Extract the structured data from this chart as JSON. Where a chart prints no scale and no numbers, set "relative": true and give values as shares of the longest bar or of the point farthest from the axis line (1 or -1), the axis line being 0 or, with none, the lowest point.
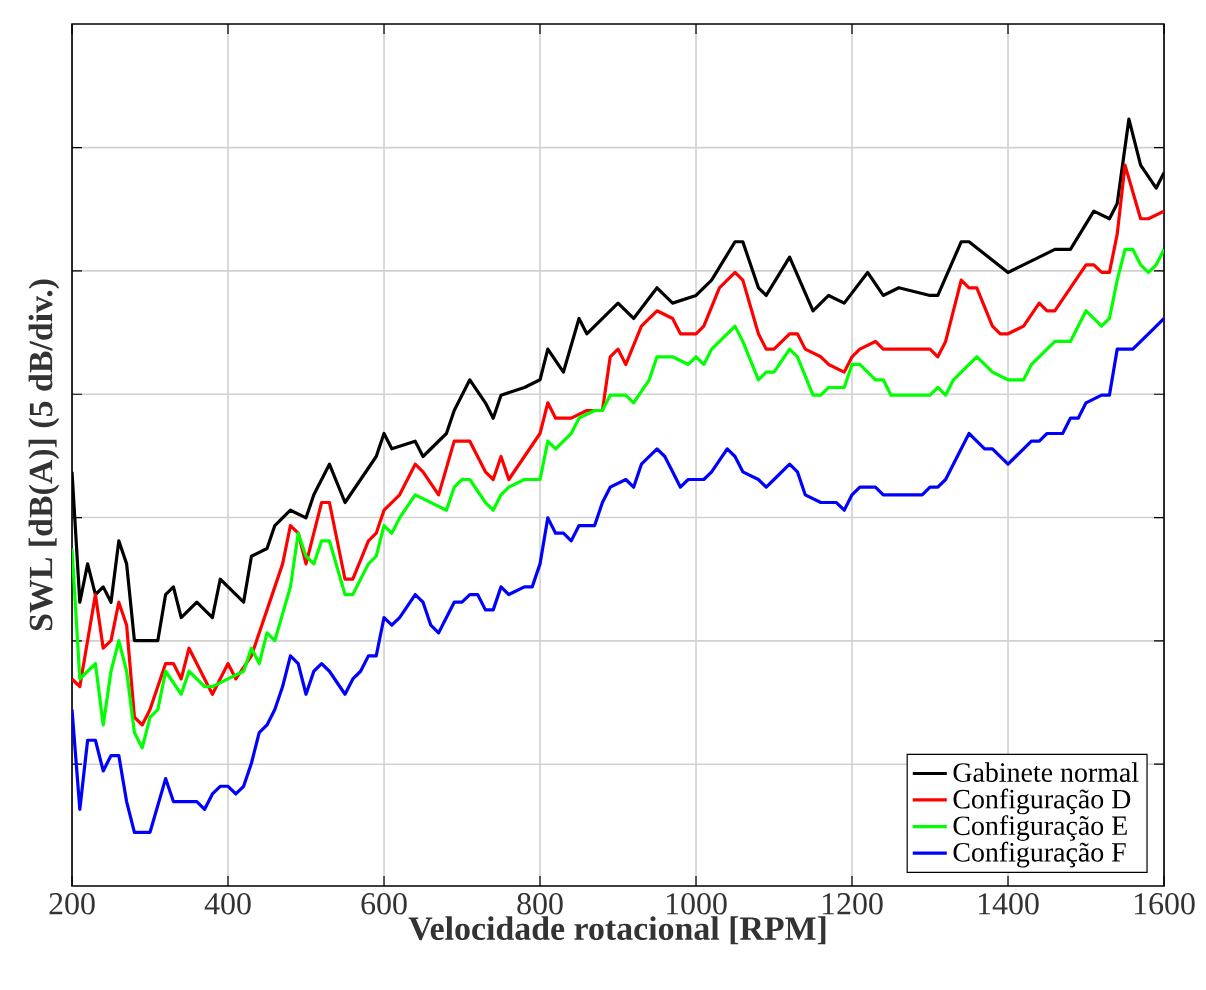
{
  "chart_data": {
    "type": "line",
    "xlabel": "Velocidade rotacional [RPM]",
    "ylabel": "SWL [dB(A)] (5 dB/div.)",
    "relative": true,
    "xlim": [
      200,
      1600
    ],
    "xticks": [
      200,
      400,
      600,
      800,
      1000,
      1200,
      1400,
      1600
    ],
    "grid": true,
    "legend": "bottom right",
    "line_style": "solid",
    "marker": "none",
    "series": [
      {
        "name": "Gabinete normal",
        "color": "#000000",
        "x": [
          200,
          210,
          220,
          230,
          240,
          250,
          260,
          270,
          280,
          300,
          310,
          320,
          330,
          340,
          360,
          380,
          390,
          420,
          430,
          450,
          460,
          480,
          500,
          510,
          530,
          550,
          590,
          600,
          610,
          640,
          650,
          680,
          690,
          710,
          730,
          740,
          750,
          780,
          800,
          810,
          830,
          850,
          860,
          900,
          920,
          950,
          970,
          1000,
          1020,
          1050,
          1060,
          1080,
          1090,
          1120,
          1150,
          1170,
          1190,
          1220,
          1240,
          1260,
          1300,
          1310,
          1340,
          1350,
          1400,
          1440,
          1460,
          1480,
          1510,
          1530,
          1540,
          1555,
          1570,
          1590,
          1600
        ],
        "values": [
          0.54,
          0.37,
          0.42,
          0.38,
          0.39,
          0.37,
          0.45,
          0.42,
          0.32,
          0.32,
          0.32,
          0.38,
          0.39,
          0.35,
          0.37,
          0.35,
          0.4,
          0.37,
          0.43,
          0.44,
          0.47,
          0.49,
          0.48,
          0.51,
          0.55,
          0.5,
          0.56,
          0.59,
          0.57,
          0.58,
          0.56,
          0.59,
          0.62,
          0.66,
          0.63,
          0.61,
          0.64,
          0.65,
          0.66,
          0.7,
          0.67,
          0.74,
          0.72,
          0.76,
          0.74,
          0.78,
          0.76,
          0.77,
          0.79,
          0.84,
          0.84,
          0.78,
          0.77,
          0.82,
          0.75,
          0.77,
          0.76,
          0.8,
          0.77,
          0.78,
          0.77,
          0.77,
          0.84,
          0.84,
          0.8,
          0.82,
          0.83,
          0.83,
          0.88,
          0.87,
          0.89,
          1.0,
          0.94,
          0.91,
          0.93
        ]
      },
      {
        "name": "Configuração D",
        "color": "#ff0000",
        "x": [
          200,
          210,
          230,
          240,
          250,
          260,
          270,
          280,
          290,
          300,
          320,
          330,
          340,
          350,
          370,
          380,
          400,
          410,
          430,
          450,
          470,
          480,
          490,
          500,
          520,
          530,
          550,
          560,
          580,
          590,
          600,
          620,
          640,
          650,
          670,
          690,
          710,
          730,
          740,
          750,
          760,
          780,
          800,
          810,
          820,
          840,
          860,
          880,
          890,
          900,
          910,
          930,
          950,
          970,
          980,
          1000,
          1010,
          1030,
          1050,
          1060,
          1080,
          1090,
          1100,
          1120,
          1130,
          1140,
          1160,
          1170,
          1190,
          1200,
          1210,
          1230,
          1240,
          1260,
          1280,
          1300,
          1310,
          1320,
          1340,
          1350,
          1360,
          1380,
          1390,
          1400,
          1420,
          1440,
          1450,
          1460,
          1480,
          1500,
          1510,
          1520,
          1530,
          1540,
          1550,
          1570,
          1580,
          1600
        ],
        "values": [
          0.27,
          0.26,
          0.38,
          0.31,
          0.32,
          0.37,
          0.34,
          0.22,
          0.21,
          0.23,
          0.29,
          0.29,
          0.27,
          0.31,
          0.27,
          0.25,
          0.29,
          0.27,
          0.3,
          0.36,
          0.42,
          0.47,
          0.46,
          0.42,
          0.5,
          0.5,
          0.4,
          0.4,
          0.45,
          0.46,
          0.49,
          0.51,
          0.55,
          0.54,
          0.51,
          0.58,
          0.58,
          0.54,
          0.53,
          0.56,
          0.53,
          0.56,
          0.59,
          0.63,
          0.61,
          0.61,
          0.62,
          0.62,
          0.69,
          0.7,
          0.68,
          0.73,
          0.75,
          0.74,
          0.72,
          0.72,
          0.73,
          0.78,
          0.8,
          0.79,
          0.72,
          0.7,
          0.7,
          0.72,
          0.72,
          0.7,
          0.69,
          0.68,
          0.67,
          0.69,
          0.7,
          0.71,
          0.7,
          0.7,
          0.7,
          0.7,
          0.69,
          0.71,
          0.79,
          0.78,
          0.78,
          0.73,
          0.72,
          0.72,
          0.73,
          0.76,
          0.75,
          0.75,
          0.78,
          0.81,
          0.81,
          0.8,
          0.8,
          0.85,
          0.94,
          0.87,
          0.87,
          0.88
        ]
      },
      {
        "name": "Configuração E",
        "color": "#00ff00",
        "x": [
          200,
          210,
          220,
          230,
          240,
          250,
          260,
          270,
          280,
          290,
          300,
          310,
          320,
          340,
          350,
          370,
          380,
          400,
          420,
          430,
          440,
          450,
          460,
          480,
          490,
          500,
          510,
          520,
          530,
          550,
          560,
          580,
          590,
          600,
          610,
          620,
          640,
          660,
          680,
          690,
          700,
          710,
          730,
          740,
          750,
          760,
          780,
          800,
          810,
          820,
          840,
          850,
          870,
          880,
          890,
          900,
          910,
          920,
          940,
          950,
          970,
          990,
          1000,
          1010,
          1020,
          1040,
          1050,
          1060,
          1080,
          1090,
          1100,
          1120,
          1130,
          1150,
          1160,
          1170,
          1190,
          1200,
          1210,
          1230,
          1240,
          1250,
          1260,
          1280,
          1300,
          1310,
          1320,
          1330,
          1340,
          1360,
          1370,
          1380,
          1400,
          1420,
          1430,
          1440,
          1460,
          1480,
          1490,
          1500,
          1520,
          1530,
          1540,
          1550,
          1560,
          1570,
          1580,
          1590,
          1600
        ],
        "values": [
          0.44,
          0.27,
          0.28,
          0.29,
          0.21,
          0.28,
          0.32,
          0.28,
          0.2,
          0.18,
          0.22,
          0.23,
          0.28,
          0.25,
          0.28,
          0.26,
          0.26,
          0.27,
          0.28,
          0.31,
          0.29,
          0.33,
          0.32,
          0.39,
          0.46,
          0.43,
          0.42,
          0.45,
          0.45,
          0.38,
          0.38,
          0.42,
          0.43,
          0.47,
          0.46,
          0.48,
          0.51,
          0.5,
          0.49,
          0.52,
          0.53,
          0.53,
          0.5,
          0.49,
          0.51,
          0.52,
          0.53,
          0.53,
          0.58,
          0.57,
          0.59,
          0.61,
          0.62,
          0.62,
          0.64,
          0.64,
          0.64,
          0.63,
          0.66,
          0.69,
          0.69,
          0.68,
          0.69,
          0.68,
          0.7,
          0.72,
          0.73,
          0.71,
          0.66,
          0.67,
          0.67,
          0.7,
          0.69,
          0.64,
          0.64,
          0.65,
          0.65,
          0.68,
          0.68,
          0.66,
          0.66,
          0.64,
          0.64,
          0.64,
          0.64,
          0.65,
          0.64,
          0.66,
          0.67,
          0.69,
          0.68,
          0.67,
          0.66,
          0.66,
          0.68,
          0.69,
          0.71,
          0.71,
          0.73,
          0.75,
          0.73,
          0.74,
          0.79,
          0.83,
          0.83,
          0.81,
          0.8,
          0.81,
          0.83
        ]
      },
      {
        "name": "Configuração F",
        "color": "#0000ff",
        "x": [
          200,
          210,
          220,
          230,
          240,
          250,
          260,
          270,
          280,
          290,
          300,
          320,
          330,
          350,
          360,
          370,
          380,
          390,
          400,
          410,
          420,
          430,
          440,
          450,
          460,
          470,
          480,
          490,
          500,
          510,
          520,
          530,
          550,
          560,
          570,
          580,
          590,
          600,
          610,
          620,
          640,
          650,
          660,
          670,
          680,
          690,
          700,
          710,
          720,
          730,
          740,
          750,
          760,
          780,
          790,
          800,
          810,
          820,
          830,
          840,
          850,
          860,
          870,
          880,
          890,
          910,
          920,
          930,
          950,
          960,
          970,
          980,
          990,
          1010,
          1020,
          1040,
          1050,
          1060,
          1080,
          1090,
          1100,
          1120,
          1130,
          1140,
          1160,
          1180,
          1190,
          1200,
          1210,
          1230,
          1240,
          1250,
          1260,
          1280,
          1290,
          1300,
          1310,
          1320,
          1340,
          1350,
          1360,
          1370,
          1380,
          1400,
          1410,
          1430,
          1440,
          1450,
          1470,
          1480,
          1490,
          1500,
          1520,
          1530,
          1540,
          1560,
          1580,
          1600
        ],
        "values": [
          0.23,
          0.1,
          0.19,
          0.19,
          0.15,
          0.17,
          0.17,
          0.11,
          0.07,
          0.07,
          0.07,
          0.14,
          0.11,
          0.11,
          0.11,
          0.1,
          0.12,
          0.13,
          0.13,
          0.12,
          0.13,
          0.16,
          0.2,
          0.21,
          0.23,
          0.26,
          0.3,
          0.29,
          0.25,
          0.28,
          0.29,
          0.28,
          0.25,
          0.27,
          0.28,
          0.3,
          0.3,
          0.35,
          0.34,
          0.35,
          0.38,
          0.37,
          0.34,
          0.33,
          0.35,
          0.37,
          0.37,
          0.38,
          0.38,
          0.36,
          0.36,
          0.39,
          0.38,
          0.39,
          0.39,
          0.42,
          0.48,
          0.46,
          0.46,
          0.45,
          0.47,
          0.47,
          0.47,
          0.5,
          0.52,
          0.53,
          0.52,
          0.55,
          0.57,
          0.56,
          0.54,
          0.52,
          0.53,
          0.53,
          0.54,
          0.57,
          0.56,
          0.54,
          0.53,
          0.52,
          0.53,
          0.55,
          0.54,
          0.51,
          0.5,
          0.5,
          0.49,
          0.51,
          0.52,
          0.52,
          0.51,
          0.51,
          0.51,
          0.51,
          0.51,
          0.52,
          0.52,
          0.53,
          0.57,
          0.59,
          0.58,
          0.57,
          0.57,
          0.55,
          0.56,
          0.58,
          0.58,
          0.59,
          0.59,
          0.61,
          0.61,
          0.63,
          0.64,
          0.64,
          0.7,
          0.7,
          0.72,
          0.74
        ]
      }
    ]
  }
}
